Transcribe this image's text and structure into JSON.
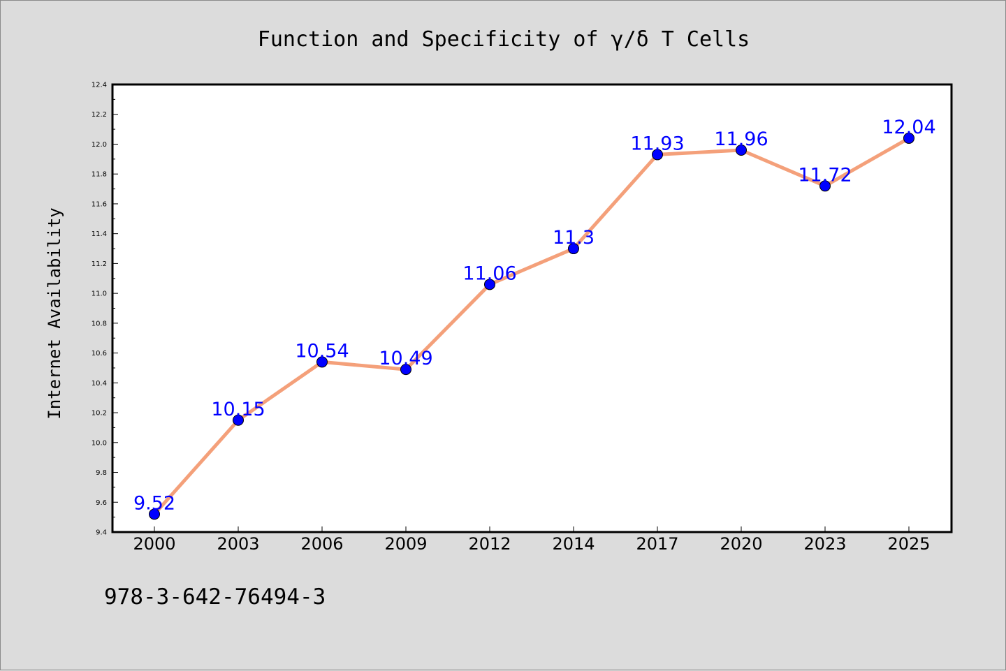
{
  "colors": {
    "background": "#dcdcdc",
    "plot_background": "#ffffff",
    "line": "#f4a07a",
    "marker": "#0000ff",
    "data_label": "#0000ff"
  },
  "chart_data": {
    "type": "line",
    "title": "Function and Specificity of γ/δ T Cells",
    "xlabel": "",
    "ylabel": "Internet Availability",
    "categories": [
      "2000",
      "2003",
      "2006",
      "2009",
      "2012",
      "2014",
      "2017",
      "2020",
      "2023",
      "2025"
    ],
    "series": [
      {
        "values": [
          9.52,
          10.15,
          10.54,
          10.49,
          11.06,
          11.3,
          11.93,
          11.96,
          11.72,
          12.04
        ],
        "labels": [
          "9.52",
          "10.15",
          "10.54",
          "10.49",
          "11.06",
          "11.3",
          "11.93",
          "11.96",
          "11.72",
          "12.04"
        ]
      }
    ],
    "ylim": [
      9.4,
      12.4
    ],
    "yticks": [
      "9.4",
      "9.6",
      "9.8",
      "10.0",
      "10.2",
      "10.4",
      "10.6",
      "10.8",
      "11.0",
      "11.2",
      "11.4",
      "11.6",
      "11.8",
      "12.0",
      "12.2",
      "12.4"
    ],
    "grid": false,
    "legend": "none"
  },
  "footer": {
    "code": "978-3-642-76494-3"
  }
}
